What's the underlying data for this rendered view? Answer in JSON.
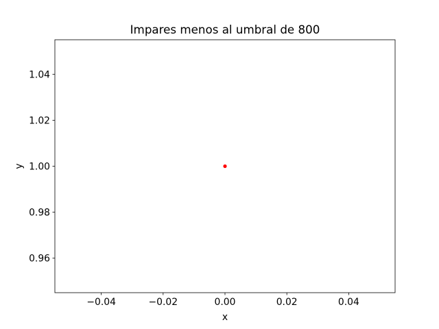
{
  "chart_data": {
    "type": "scatter",
    "title": "Impares menos al umbral de 800",
    "xlabel": "x",
    "ylabel": "y",
    "xlim": [
      -0.055,
      0.055
    ],
    "ylim": [
      0.945,
      1.055
    ],
    "xticks": [
      -0.04,
      -0.02,
      0.0,
      0.02,
      0.04
    ],
    "xtick_labels": [
      "−0.04",
      "−0.02",
      "0.00",
      "0.02",
      "0.04"
    ],
    "yticks": [
      0.96,
      0.98,
      1.0,
      1.02,
      1.04
    ],
    "ytick_labels": [
      "0.96",
      "0.98",
      "1.00",
      "1.02",
      "1.04"
    ],
    "grid": false,
    "series": [
      {
        "color": "#ff0000",
        "points": [
          {
            "x": 0.0,
            "y": 1.0
          }
        ]
      }
    ]
  }
}
